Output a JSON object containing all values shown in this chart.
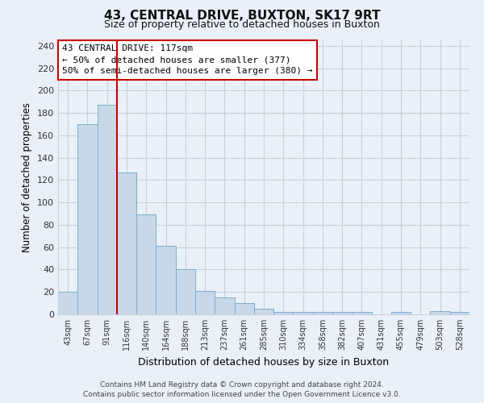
{
  "title": "43, CENTRAL DRIVE, BUXTON, SK17 9RT",
  "subtitle": "Size of property relative to detached houses in Buxton",
  "xlabel": "Distribution of detached houses by size in Buxton",
  "ylabel": "Number of detached properties",
  "bin_labels": [
    "43sqm",
    "67sqm",
    "91sqm",
    "116sqm",
    "140sqm",
    "164sqm",
    "188sqm",
    "213sqm",
    "237sqm",
    "261sqm",
    "285sqm",
    "310sqm",
    "334sqm",
    "358sqm",
    "382sqm",
    "407sqm",
    "431sqm",
    "455sqm",
    "479sqm",
    "503sqm",
    "528sqm"
  ],
  "bar_heights": [
    20,
    170,
    187,
    127,
    89,
    61,
    40,
    21,
    15,
    10,
    5,
    2,
    2,
    2,
    2,
    2,
    0,
    2,
    0,
    3,
    2
  ],
  "bar_color": "#c8d8ea",
  "bar_edge_color": "#7aafc8",
  "vline_x_index": 2,
  "vline_color": "#cc0000",
  "annotation_title": "43 CENTRAL DRIVE: 117sqm",
  "annotation_line1": "← 50% of detached houses are smaller (377)",
  "annotation_line2": "50% of semi-detached houses are larger (380) →",
  "annotation_box_color": "#ffffff",
  "annotation_box_edge_color": "#cc0000",
  "ylim": [
    0,
    245
  ],
  "yticks": [
    0,
    20,
    40,
    60,
    80,
    100,
    120,
    140,
    160,
    180,
    200,
    220,
    240
  ],
  "footer_line1": "Contains HM Land Registry data © Crown copyright and database right 2024.",
  "footer_line2": "Contains public sector information licensed under the Open Government Licence v3.0.",
  "bg_color": "#eaf0f8",
  "plot_bg_color": "#eaf0f8",
  "grid_color": "#c8d0dc",
  "title_fontsize": 11,
  "subtitle_fontsize": 9
}
